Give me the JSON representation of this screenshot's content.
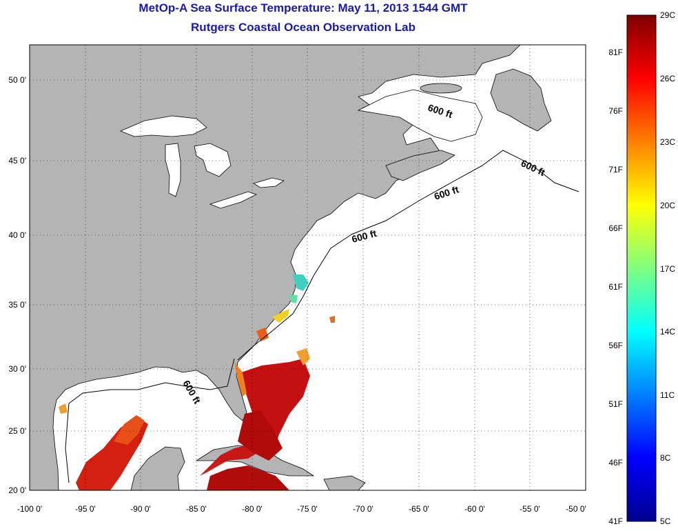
{
  "header": {
    "title": "MetOp-A Sea Surface Temperature:  May 11, 2013 1544 GMT",
    "subtitle": "Rutgers Coastal Ocean Observation Lab"
  },
  "map": {
    "lon_range": [
      -100,
      -50
    ],
    "lat_range": [
      20,
      52.5
    ],
    "lon_ticks": [
      "-100 0'",
      "-95 0'",
      "-90 0'",
      "-85 0'",
      "-80 0'",
      "-75 0'",
      "-70 0'",
      "-65 0'",
      "-60 0'",
      "-55 0'",
      "-50 0'"
    ],
    "lat_ticks": [
      "20 0'",
      "25 0'",
      "30 0'",
      "35 0'",
      "40 0'",
      "45 0'",
      "50 0'"
    ],
    "grid": "dotted",
    "land_color": "#b4b4b4",
    "water_color": "#ffffff",
    "contour_labels": [
      "600 ft",
      "600 ft",
      "600 ft",
      "600 ft",
      "600 ft"
    ]
  },
  "colorbar": {
    "celsius_labels": [
      "29C",
      "26C",
      "23C",
      "20C",
      "17C",
      "14C",
      "11C",
      "8C",
      "5C"
    ],
    "fahrenheit_labels": [
      "81F",
      "76F",
      "71F",
      "66F",
      "61F",
      "56F",
      "51F",
      "46F",
      "41F"
    ],
    "range_c": [
      5,
      29
    ],
    "colors": [
      "#7f0000",
      "#ff0000",
      "#ff7f00",
      "#ffff00",
      "#7fff7f",
      "#00ffff",
      "#007fff",
      "#0000ff",
      "#00008f"
    ]
  }
}
